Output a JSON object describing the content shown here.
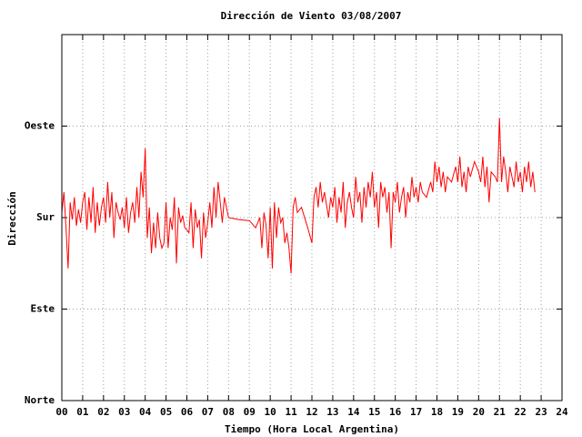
{
  "chart_data": {
    "type": "line",
    "title": "Dirección de Viento 03/08/2007",
    "x_label": "Tiempo (Hora Local Argentina)",
    "y_label": "Dirección",
    "xlim": [
      0,
      24
    ],
    "xticks": [
      {
        "value": 0,
        "label": "00"
      },
      {
        "value": 1,
        "label": "01"
      },
      {
        "value": 2,
        "label": "02"
      },
      {
        "value": 3,
        "label": "03"
      },
      {
        "value": 4,
        "label": "04"
      },
      {
        "value": 5,
        "label": "05"
      },
      {
        "value": 6,
        "label": "06"
      },
      {
        "value": 7,
        "label": "07"
      },
      {
        "value": 8,
        "label": "08"
      },
      {
        "value": 9,
        "label": "09"
      },
      10,
      11,
      12,
      13,
      14,
      15,
      16,
      17,
      18,
      19,
      20,
      21,
      22,
      23,
      24
    ],
    "ylim": [
      0,
      360
    ],
    "yticks": [
      {
        "value": 0,
        "label": "Norte"
      },
      {
        "value": 90,
        "label": "Este"
      },
      {
        "value": 180,
        "label": "Sur"
      },
      {
        "value": 270,
        "label": "Oeste"
      }
    ],
    "grid": true,
    "series": [
      {
        "color": "#ff0000",
        "x": [
          0,
          0.1,
          0.2,
          0.3,
          0.4,
          0.5,
          0.6,
          0.7,
          0.8,
          0.9,
          1,
          1.1,
          1.2,
          1.3,
          1.4,
          1.5,
          1.6,
          1.7,
          1.8,
          1.9,
          2,
          2.1,
          2.2,
          2.3,
          2.4,
          2.5,
          2.6,
          2.7,
          2.8,
          2.9,
          3,
          3.1,
          3.2,
          3.3,
          3.4,
          3.5,
          3.6,
          3.7,
          3.8,
          3.9,
          4,
          4.1,
          4.2,
          4.3,
          4.4,
          4.5,
          4.6,
          4.7,
          4.8,
          4.9,
          5,
          5.1,
          5.2,
          5.3,
          5.4,
          5.5,
          5.6,
          5.7,
          5.8,
          5.9,
          6,
          6.1,
          6.2,
          6.3,
          6.4,
          6.5,
          6.6,
          6.7,
          6.8,
          6.9,
          7,
          7.1,
          7.2,
          7.3,
          7.4,
          7.5,
          7.6,
          7.7,
          7.8,
          8,
          8.5,
          9,
          9.3,
          9.5,
          9.6,
          9.7,
          9.8,
          9.9,
          10,
          10.1,
          10.2,
          10.3,
          10.4,
          10.5,
          10.6,
          10.7,
          10.8,
          10.9,
          11,
          11.1,
          11.2,
          11.3,
          11.5,
          11.8,
          12,
          12.1,
          12.2,
          12.3,
          12.4,
          12.5,
          12.6,
          12.8,
          12.9,
          13,
          13.1,
          13.2,
          13.3,
          13.4,
          13.5,
          13.6,
          13.7,
          13.8,
          13.9,
          14,
          14.1,
          14.2,
          14.3,
          14.4,
          14.5,
          14.6,
          14.7,
          14.8,
          14.9,
          15,
          15.1,
          15.2,
          15.3,
          15.4,
          15.5,
          15.6,
          15.7,
          15.8,
          15.9,
          16,
          16.1,
          16.2,
          16.3,
          16.4,
          16.5,
          16.6,
          16.7,
          16.8,
          16.9,
          17,
          17.1,
          17.2,
          17.3,
          17.5,
          17.7,
          17.8,
          17.9,
          18,
          18.1,
          18.2,
          18.3,
          18.4,
          18.5,
          18.7,
          18.9,
          19,
          19.1,
          19.2,
          19.3,
          19.4,
          19.5,
          19.6,
          19.8,
          20,
          20.1,
          20.2,
          20.3,
          20.4,
          20.5,
          20.6,
          20.8,
          20.9,
          21,
          21.1,
          21.2,
          21.3,
          21.4,
          21.5,
          21.6,
          21.7,
          21.8,
          21.9,
          22,
          22.1,
          22.2,
          22.3,
          22.4,
          22.5,
          22.6,
          22.7
        ],
        "values": [
          185,
          205,
          170,
          130,
          195,
          178,
          200,
          172,
          188,
          175,
          195,
          205,
          168,
          200,
          175,
          210,
          165,
          195,
          172,
          190,
          200,
          175,
          215,
          180,
          205,
          160,
          195,
          185,
          178,
          190,
          170,
          200,
          165,
          185,
          195,
          175,
          210,
          180,
          225,
          200,
          248,
          160,
          190,
          145,
          175,
          150,
          185,
          160,
          150,
          155,
          195,
          150,
          180,
          168,
          200,
          135,
          190,
          175,
          182,
          170,
          168,
          165,
          195,
          150,
          188,
          170,
          178,
          140,
          185,
          160,
          175,
          195,
          170,
          210,
          180,
          215,
          195,
          175,
          200,
          180,
          178,
          177,
          170,
          180,
          150,
          185,
          172,
          140,
          190,
          130,
          195,
          160,
          190,
          175,
          180,
          155,
          165,
          150,
          125,
          190,
          200,
          185,
          190,
          170,
          155,
          200,
          210,
          190,
          215,
          195,
          205,
          180,
          200,
          190,
          210,
          175,
          200,
          185,
          215,
          170,
          195,
          205,
          190,
          180,
          220,
          195,
          205,
          175,
          210,
          190,
          215,
          200,
          225,
          190,
          205,
          170,
          215,
          200,
          210,
          185,
          205,
          150,
          205,
          195,
          215,
          185,
          200,
          210,
          180,
          205,
          195,
          220,
          200,
          210,
          195,
          215,
          205,
          200,
          215,
          205,
          235,
          215,
          230,
          210,
          225,
          205,
          220,
          215,
          230,
          215,
          240,
          210,
          225,
          205,
          230,
          220,
          235,
          225,
          215,
          240,
          210,
          230,
          195,
          225,
          220,
          215,
          278,
          215,
          240,
          225,
          205,
          230,
          220,
          210,
          235,
          215,
          225,
          205,
          230,
          215,
          235,
          210,
          225,
          205
        ]
      }
    ]
  }
}
